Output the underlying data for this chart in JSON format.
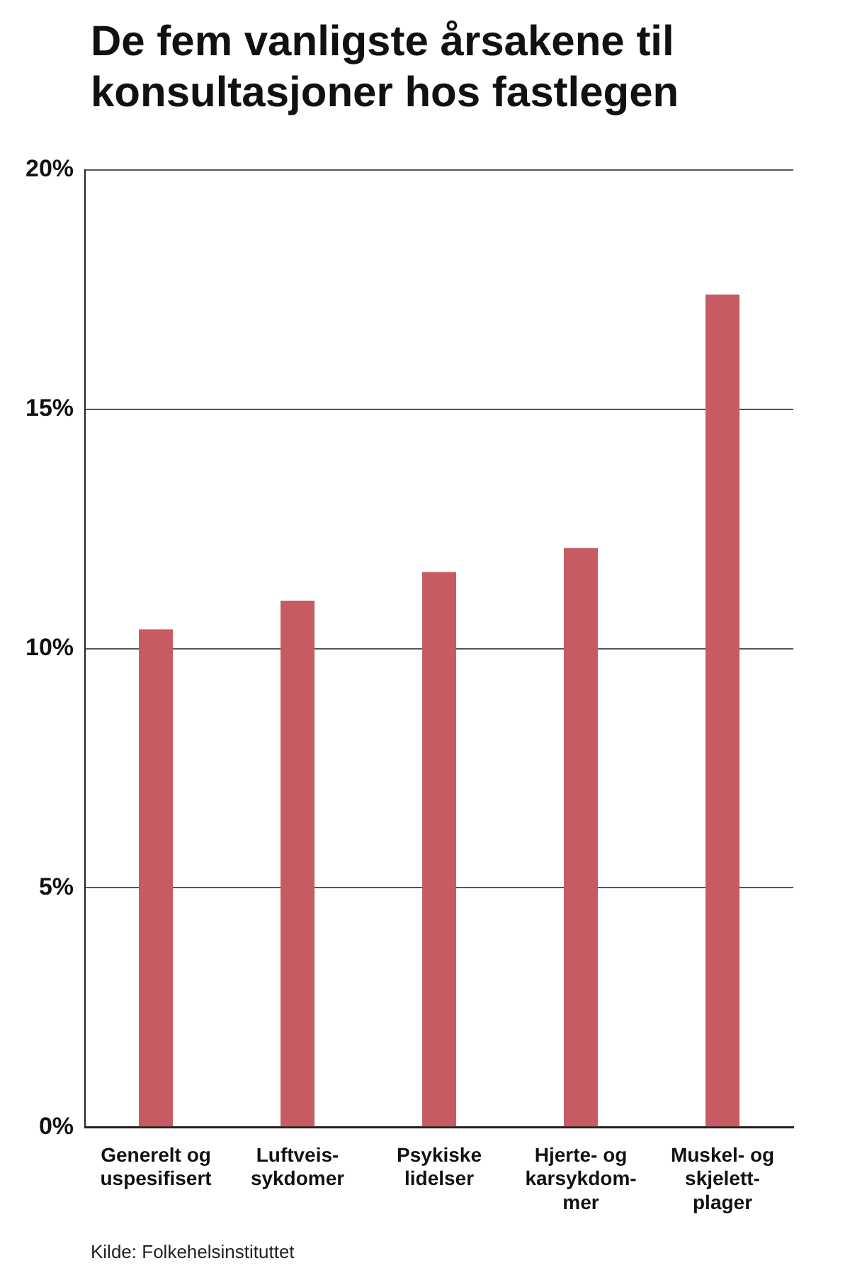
{
  "chart_data": {
    "type": "bar",
    "title": "De fem vanligste årsakene til konsultasjoner hos fastlegen",
    "categories": [
      "Generelt og\nuspesifisert",
      "Luftveis-\nsykdomer",
      "Psykiske\nlidelser",
      "Hjerte- og\nkarsykdom-\nmer",
      "Muskel- og\nskjelett-\nplager"
    ],
    "values": [
      10.4,
      11.0,
      11.6,
      12.1,
      17.4
    ],
    "color": "#c65b64",
    "ylim": [
      0,
      20
    ],
    "yticks": [
      {
        "value": 0,
        "label": "0%"
      },
      {
        "value": 5,
        "label": "5%"
      },
      {
        "value": 10,
        "label": "10%"
      },
      {
        "value": 15,
        "label": "15%"
      },
      {
        "value": 20,
        "label": "20%"
      }
    ],
    "grid": "y",
    "legend": false,
    "annotations": [
      "Kilde: Folkehelsinstituttet"
    ]
  }
}
